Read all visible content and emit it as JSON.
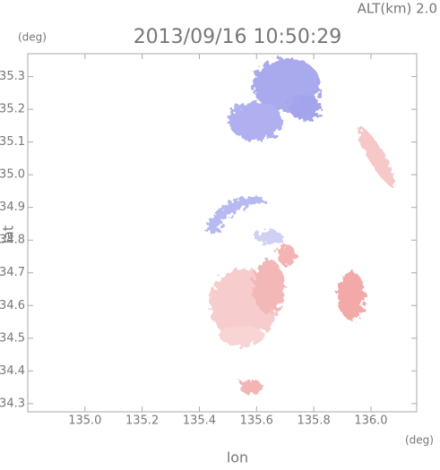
{
  "chart_data": {
    "type": "field",
    "title": "2013/09/16 10:50:29",
    "subtitle": "ALT(km) 2.0",
    "x_label": "lon",
    "y_label": "lat",
    "x_unit": "(deg)",
    "y_unit": "(deg)",
    "xlim": [
      134.8,
      136.16
    ],
    "ylim": [
      34.275,
      35.37
    ],
    "xticks": [
      {
        "value": 135,
        "label": "135.0"
      },
      135.2,
      135.4,
      135.6,
      135.8,
      {
        "value": 136,
        "label": "136.0"
      }
    ],
    "yticks": [
      34.3,
      34.4,
      34.5,
      34.6,
      34.7,
      34.8,
      34.9,
      {
        "value": 35,
        "label": "35.0"
      },
      35.1,
      35.2,
      35.3
    ]
  }
}
